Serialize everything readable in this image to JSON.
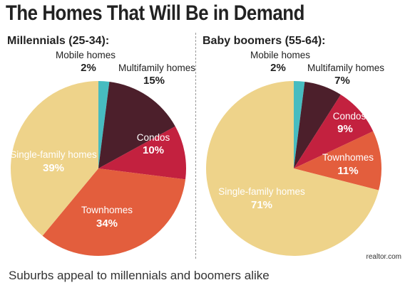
{
  "title": "The Homes That Will Be in Demand",
  "source": "realtor.com",
  "caption": "Suburbs appeal to millennials and boomers alike",
  "colors": {
    "Mobile homes": "#47bcc0",
    "Multifamily homes": "#4c1f2b",
    "Condos": "#c3213f",
    "Townhomes": "#e35e3d",
    "Single-family homes": "#eed38a"
  },
  "chart_data": [
    {
      "type": "pie",
      "title": "Millennials (25-34):",
      "slices": [
        {
          "label": "Mobile homes",
          "pct_label": "2%",
          "value": 2
        },
        {
          "label": "Multifamily homes",
          "pct_label": "15%",
          "value": 15
        },
        {
          "label": "Condos",
          "pct_label": "10%",
          "value": 10
        },
        {
          "label": "Townhomes",
          "pct_label": "34%",
          "value": 34
        },
        {
          "label": "Single-family homes",
          "pct_label": "39%",
          "value": 39
        }
      ]
    },
    {
      "type": "pie",
      "title": "Baby boomers (55-64):",
      "slices": [
        {
          "label": "Mobile homes",
          "pct_label": "2%",
          "value": 2
        },
        {
          "label": "Multifamily homes",
          "pct_label": "7%",
          "value": 7
        },
        {
          "label": "Condos",
          "pct_label": "9%",
          "value": 9
        },
        {
          "label": "Townhomes",
          "pct_label": "11%",
          "value": 11
        },
        {
          "label": "Single-family homes",
          "pct_label": "71%",
          "value": 71
        }
      ]
    }
  ]
}
